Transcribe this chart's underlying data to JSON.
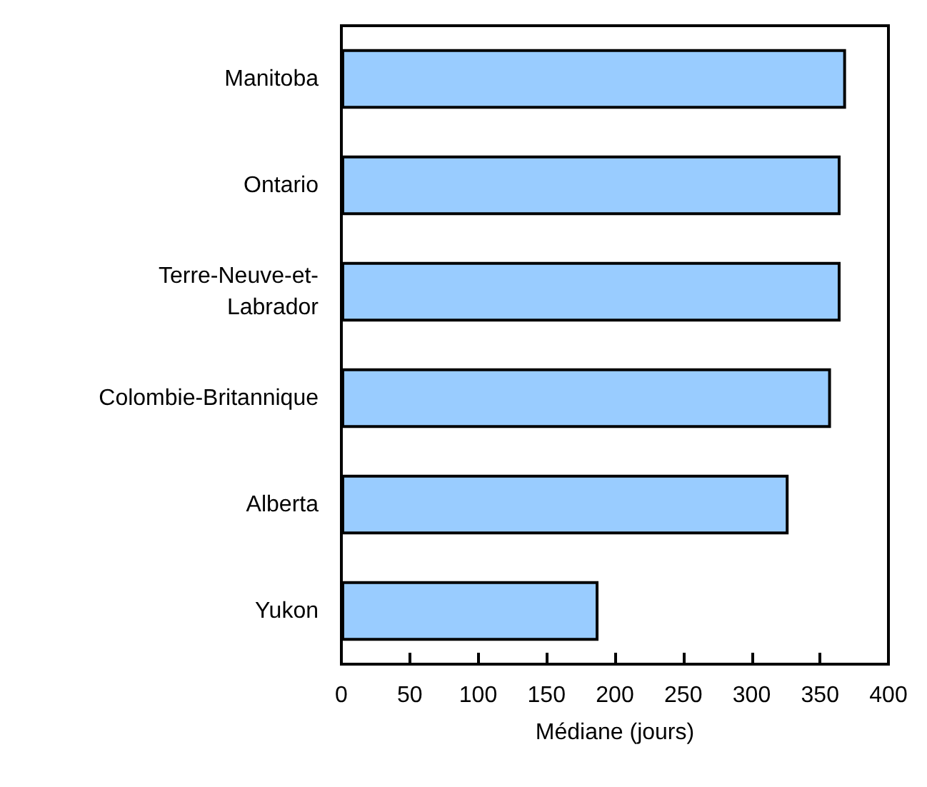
{
  "chart_data": {
    "type": "bar",
    "orientation": "horizontal",
    "xlabel": "Médiane (jours)",
    "categories": [
      "Manitoba",
      "Ontario",
      "Terre-Neuve-et-\nLabrador",
      "Colombie-Britannique",
      "Alberta",
      "Yukon"
    ],
    "values": [
      369,
      365,
      365,
      358,
      327,
      188
    ],
    "color": "#99ccff",
    "xlim": [
      0,
      400
    ],
    "xticks": [
      0,
      50,
      100,
      150,
      200,
      250,
      300,
      350,
      400
    ],
    "grid": false
  }
}
